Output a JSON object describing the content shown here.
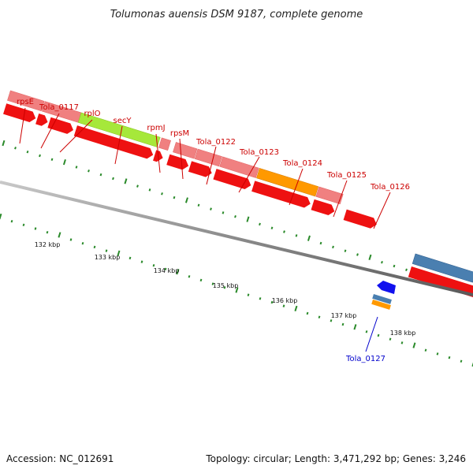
{
  "header": {
    "title": "Tolumonas auensis DSM 9187, complete genome"
  },
  "footer": {
    "accession": "Accession: NC_012691",
    "summary": "Topology: circular; Length: 3,471,292 bp; Genes: 3,246"
  },
  "colors": {
    "cds": "#ee1111",
    "gene": "#f08080",
    "highlight_green": "#a6e83a",
    "highlight_orange": "#ff9900",
    "highlight_blue": "#4a7fb0",
    "reverse_gene": "#1111ee",
    "tick": "#2a8a2a",
    "backbone": "#7a7a7a",
    "label_red": "#cc0000",
    "label_blue": "#0000cc"
  },
  "scale": {
    "ticks": [
      {
        "label": "132 kbp"
      },
      {
        "label": "133 kbp"
      },
      {
        "label": "134 kbp"
      },
      {
        "label": "135 kbp"
      },
      {
        "label": "136 kbp"
      },
      {
        "label": "137 kbp"
      },
      {
        "label": "138 kbp"
      }
    ]
  },
  "genes": [
    {
      "label": "rpsE"
    },
    {
      "label": "Tola_0117"
    },
    {
      "label": "rplO"
    },
    {
      "label": "secY"
    },
    {
      "label": "rpmJ"
    },
    {
      "label": "rpsM"
    },
    {
      "label": "Tola_0122"
    },
    {
      "label": "Tola_0123"
    },
    {
      "label": "Tola_0124"
    },
    {
      "label": "Tola_0125"
    },
    {
      "label": "Tola_0126"
    },
    {
      "label": "Tola_0127"
    }
  ]
}
